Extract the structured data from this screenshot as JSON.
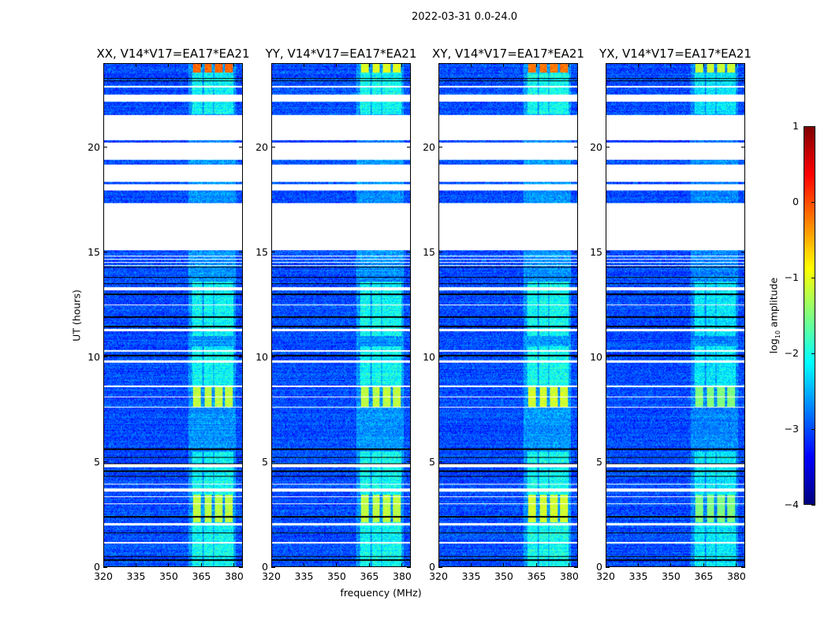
{
  "chart_data": {
    "type": "heatmap",
    "title": "2022-03-31 0.0-24.0",
    "xlabel": "frequency (MHz)",
    "ylabel": "UT (hours)",
    "xlim": [
      320,
      384
    ],
    "ylim": [
      0,
      24
    ],
    "xticks": [
      "320",
      "335",
      "350",
      "365",
      "380"
    ],
    "xtick_values": [
      320,
      335,
      350,
      365,
      380
    ],
    "yticks": [
      "0",
      "5",
      "10",
      "15",
      "20"
    ],
    "ytick_values": [
      0,
      5,
      10,
      15,
      20
    ],
    "colorbar": {
      "label_prefix": "log",
      "label_sub": "10",
      "label_suffix": " amplitude",
      "range": [
        -4,
        1
      ],
      "ticks": [
        "−4",
        "−3",
        "−2",
        "−1",
        "0",
        "1"
      ],
      "tick_values": [
        -4,
        -3,
        -2,
        -1,
        0,
        1
      ],
      "colormap": "jet"
    },
    "panels": [
      {
        "title": "XX, V14*V17=EA17*EA21",
        "band_gain": 1.0,
        "top_gain": 1.6
      },
      {
        "title": "YY, V14*V17=EA17*EA21",
        "band_gain": 1.0,
        "top_gain": 1.1
      },
      {
        "title": "XY, V14*V17=EA17*EA21",
        "band_gain": 1.05,
        "top_gain": 1.5
      },
      {
        "title": "YX, V14*V17=EA17*EA21",
        "band_gain": 0.85,
        "top_gain": 1.2
      }
    ],
    "background_level": -3.0,
    "bright_subbands_mhz": [
      [
        360.7,
        365.5
      ],
      [
        366.2,
        370.5
      ],
      [
        370.9,
        375.6
      ],
      [
        375.6,
        380.0
      ]
    ],
    "bright_hours": [
      [
        2.1,
        3.4
      ],
      [
        7.6,
        8.55
      ],
      [
        23.6,
        24.0
      ]
    ],
    "moderate_hours": [
      [
        11.0,
        13.6
      ],
      [
        21.6,
        23.6
      ],
      [
        0,
        2.1
      ],
      [
        3.4,
        5.5
      ],
      [
        8.55,
        10.5
      ]
    ],
    "flagged_hours": [
      [
        22.19,
        22.55
      ],
      [
        22.86,
        22.96
      ],
      [
        20.35,
        21.55
      ],
      [
        19.41,
        20.24
      ],
      [
        18.36,
        19.19
      ],
      [
        17.95,
        18.25
      ],
      [
        15.1,
        17.35
      ],
      [
        14.78,
        14.82
      ],
      [
        14.66,
        14.7
      ],
      [
        14.51,
        14.55
      ],
      [
        14.36,
        14.4
      ],
      [
        13.2,
        13.33
      ],
      [
        12.48,
        12.52
      ],
      [
        11.23,
        11.34
      ],
      [
        10.27,
        10.31
      ],
      [
        9.73,
        9.84
      ],
      [
        8.56,
        8.64
      ],
      [
        8.09,
        8.13
      ],
      [
        7.6,
        7.64
      ],
      [
        4.73,
        4.88
      ],
      [
        3.92,
        3.96
      ],
      [
        3.57,
        3.72
      ],
      [
        3.32,
        3.36
      ],
      [
        2.98,
        3.02
      ],
      [
        1.95,
        2.07
      ],
      [
        1.1,
        1.17
      ]
    ],
    "dropout_hours": [
      23.3,
      23.2,
      14.3,
      13.8,
      13.5,
      13.0,
      11.9,
      11.45,
      10.06,
      5.6,
      5.2,
      4.9,
      4.55,
      4.3,
      2.37,
      1.6,
      0.48,
      0.3
    ]
  }
}
